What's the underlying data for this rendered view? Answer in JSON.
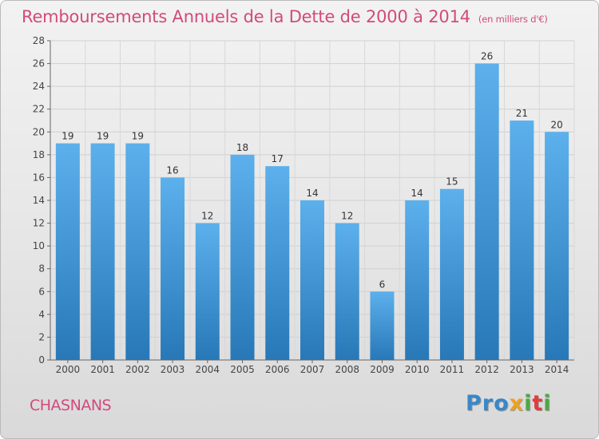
{
  "header": {
    "title": "Remboursements Annuels de la Dette de 2000 à 2014",
    "unit": "(en milliers d'€)"
  },
  "footer": {
    "commune": "CHASNANS",
    "logo": "Proxiti"
  },
  "colors": {
    "title": "#d24a7c",
    "bar_top": "#5aaeea",
    "bar_bottom": "#2878b8"
  },
  "chart_data": {
    "type": "bar",
    "title": "Remboursements Annuels de la Dette de 2000 à 2014",
    "subtitle": "(en milliers d'€)",
    "xlabel": "",
    "ylabel": "",
    "categories": [
      "2000",
      "2001",
      "2002",
      "2003",
      "2004",
      "2005",
      "2006",
      "2007",
      "2008",
      "2009",
      "2010",
      "2011",
      "2012",
      "2013",
      "2014"
    ],
    "values": [
      19,
      19,
      19,
      16,
      12,
      18,
      17,
      14,
      12,
      6,
      14,
      15,
      26,
      21,
      20
    ],
    "ylim": [
      0,
      28
    ],
    "yticks": [
      0,
      2,
      4,
      6,
      8,
      10,
      12,
      14,
      16,
      18,
      20,
      22,
      24,
      26,
      28
    ],
    "grid": true,
    "data_labels": true
  }
}
